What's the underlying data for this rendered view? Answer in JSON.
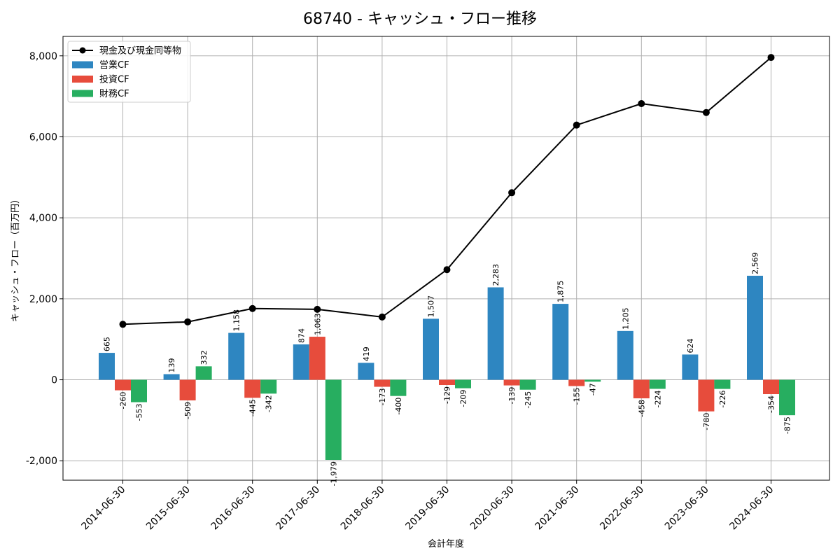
{
  "chart_data": {
    "type": "bar",
    "title": "68740 - キャッシュ・フロー推移",
    "xlabel": "会計年度",
    "ylabel": "キャッシュ・フロー（百万円）",
    "categories": [
      "2014-06-30",
      "2015-06-30",
      "2016-06-30",
      "2017-06-30",
      "2018-06-30",
      "2019-06-30",
      "2020-06-30",
      "2021-06-30",
      "2022-06-30",
      "2023-06-30",
      "2024-06-30"
    ],
    "series": [
      {
        "name": "営業CF",
        "type": "bar",
        "color": "#2e86c1",
        "values": [
          665,
          139,
          1158,
          874,
          419,
          1507,
          2283,
          1875,
          1205,
          624,
          2569
        ]
      },
      {
        "name": "投資CF",
        "type": "bar",
        "color": "#e74c3c",
        "values": [
          -260,
          -509,
          -445,
          1063,
          -173,
          -129,
          -139,
          -155,
          -458,
          -780,
          -354
        ]
      },
      {
        "name": "財務CF",
        "type": "bar",
        "color": "#27ae60",
        "values": [
          -553,
          332,
          -342,
          -1979,
          -400,
          -209,
          -245,
          -47,
          -224,
          -226,
          -875
        ]
      },
      {
        "name": "現金及び現金同等物",
        "type": "line",
        "color": "#000000",
        "values": [
          1370,
          1430,
          1760,
          1740,
          1550,
          2720,
          4620,
          6290,
          6820,
          6600,
          7960
        ]
      }
    ],
    "yticks": [
      -2000,
      0,
      2000,
      4000,
      6000,
      8000
    ],
    "ytick_labels": [
      "-2,000",
      "0",
      "2,000",
      "4,000",
      "6,000",
      "8,000"
    ],
    "ylim": [
      -2480,
      8480
    ],
    "grid": true,
    "legend_position": "top-left"
  }
}
